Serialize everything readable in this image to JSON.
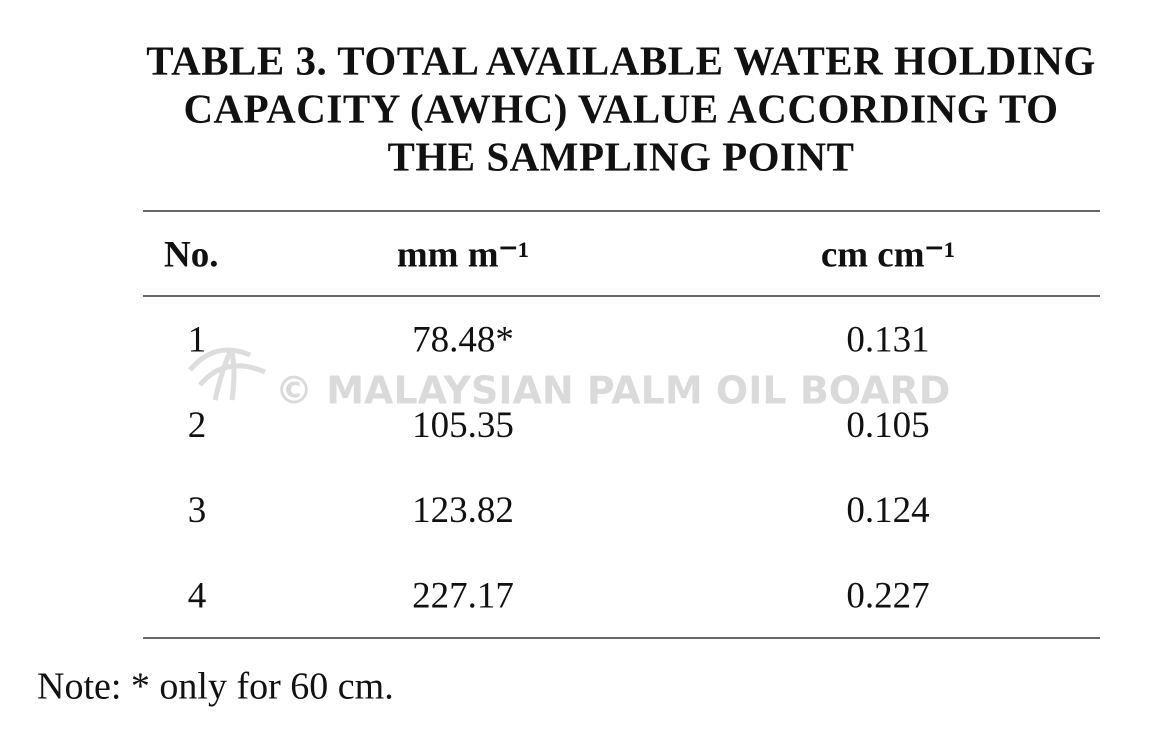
{
  "table": {
    "title": [
      "TABLE 3. TOTAL AVAILABLE WATER HOLDING",
      "CAPACITY (AWHC) VALUE ACCORDING TO",
      "THE SAMPLING POINT"
    ],
    "header": [
      "No.",
      "mm m⁻¹",
      "cm cm⁻¹"
    ],
    "rows": [
      [
        "1",
        "78.48*",
        "0.131"
      ],
      [
        "2",
        "105.35",
        "0.105"
      ],
      [
        "3",
        "123.82",
        "0.124"
      ],
      [
        "4",
        "227.17",
        "0.227"
      ]
    ],
    "note": "Note: * only for 60 cm."
  },
  "watermark": "© MALAYSIAN PALM OIL BOARD"
}
